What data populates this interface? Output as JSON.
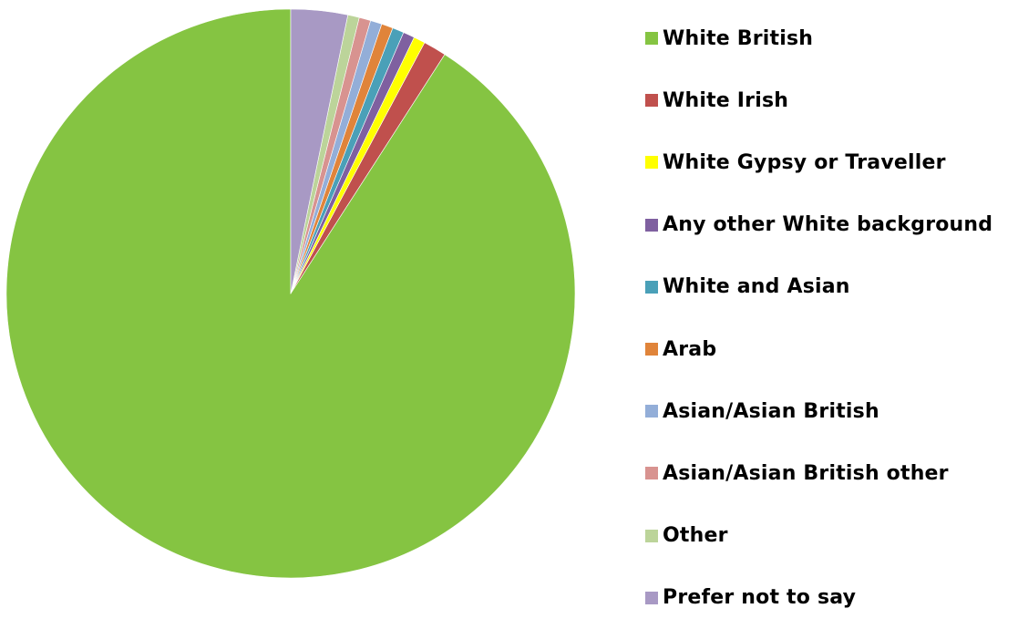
{
  "chart_data": {
    "type": "pie",
    "start_angle_deg": 0,
    "direction": "counterclockwise-from-top",
    "legend_position": "right",
    "series": [
      {
        "name": "White British",
        "value": 90.3,
        "color": "#85c442"
      },
      {
        "name": "White Irish",
        "value": 1.3,
        "color": "#c0504d"
      },
      {
        "name": "White Gypsy or Traveller",
        "value": 0.65,
        "color": "#ffff00"
      },
      {
        "name": "Any other White background",
        "value": 0.65,
        "color": "#7f60a0"
      },
      {
        "name": "White and Asian",
        "value": 0.65,
        "color": "#4aa0b8"
      },
      {
        "name": "Arab",
        "value": 0.65,
        "color": "#e0843a"
      },
      {
        "name": "Asian/Asian British",
        "value": 0.65,
        "color": "#93aed8"
      },
      {
        "name": "Asian/Asian British other",
        "value": 0.65,
        "color": "#d89390"
      },
      {
        "name": "Other",
        "value": 0.65,
        "color": "#bcd49a"
      },
      {
        "name": "Prefer not to say",
        "value": 3.2,
        "color": "#a899c4"
      }
    ]
  }
}
